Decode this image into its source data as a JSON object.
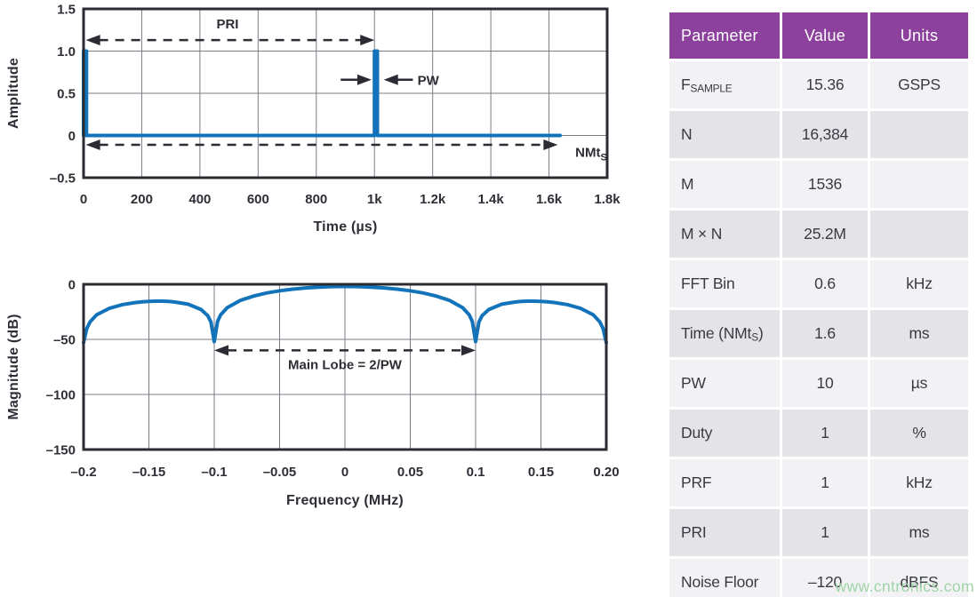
{
  "chart_data": [
    {
      "type": "line",
      "name": "time-domain-pulse-train",
      "xlabel": "Time (µs)",
      "ylabel": "Amplitude",
      "xlim": [
        0,
        1800
      ],
      "ylim": [
        -0.5,
        1.5
      ],
      "xticks": [
        "0",
        "200",
        "400",
        "600",
        "800",
        "1k",
        "1.2k",
        "1.4k",
        "1.6k",
        "1.8k"
      ],
      "xtick_values": [
        0,
        200,
        400,
        600,
        800,
        1000,
        1200,
        1400,
        1600,
        1800
      ],
      "yticks": [
        "1.5",
        "1.0",
        "0.5",
        "0",
        "–0.5"
      ],
      "ytick_values": [
        1.5,
        1.0,
        0.5,
        0,
        -0.5
      ],
      "grid": true,
      "series": [
        {
          "name": "pulse-train",
          "points": [
            [
              0,
              0
            ],
            [
              0,
              1
            ],
            [
              10,
              1
            ],
            [
              10,
              0
            ],
            [
              1000,
              0
            ],
            [
              1000,
              1
            ],
            [
              1010,
              1
            ],
            [
              1010,
              0
            ],
            [
              1638,
              0
            ]
          ]
        }
      ],
      "annotations": [
        {
          "kind": "dblarrow",
          "x1": 8,
          "x2": 1000,
          "y": 1.13,
          "label_parts": [
            {
              "t": "PRI"
            }
          ],
          "label_x": 495,
          "label_y": 1.32,
          "anchor": "middle"
        },
        {
          "kind": "arrow",
          "x1": 884,
          "x2": 990,
          "y": 0.66
        },
        {
          "kind": "arrow",
          "x1": 1132,
          "x2": 1032,
          "y": 0.66,
          "label_parts": [
            {
              "t": "PW"
            }
          ],
          "label_x": 1148,
          "label_y": 0.655,
          "anchor": "start"
        },
        {
          "kind": "dblarrow",
          "x1": 8,
          "x2": 1630,
          "y": -0.11,
          "label_parts": [
            {
              "t": "NMt"
            },
            {
              "t": "S",
              "sub": true
            }
          ],
          "label_x": 1745,
          "label_y": -0.2,
          "anchor": "middle"
        }
      ]
    },
    {
      "type": "line",
      "name": "frequency-domain-sinc-spectrum",
      "xlabel": "Frequency (MHz)",
      "ylabel": "Magnitude (dB)",
      "xlim": [
        -0.2,
        0.2
      ],
      "ylim": [
        -150,
        0
      ],
      "xticks": [
        "–0.2",
        "–0.15",
        "–0.1",
        "–0.05",
        "0",
        "0.05",
        "0.1",
        "0.15",
        "0.20"
      ],
      "xtick_values": [
        -0.2,
        -0.15,
        -0.1,
        -0.05,
        0,
        0.05,
        0.1,
        0.15,
        0.2
      ],
      "yticks": [
        "0",
        "–50",
        "–100",
        "–150"
      ],
      "ytick_values": [
        0,
        -50,
        -100,
        -150
      ],
      "grid": true,
      "series": [
        {
          "name": "sinc-spectrum",
          "points": [
            [
              -0.2,
              -53
            ],
            [
              -0.1975,
              -40
            ],
            [
              -0.195,
              -34
            ],
            [
              -0.19,
              -27.7
            ],
            [
              -0.18,
              -21.7
            ],
            [
              -0.17,
              -18.4
            ],
            [
              -0.16,
              -16.5
            ],
            [
              -0.155,
              -15.9
            ],
            [
              -0.15,
              -15.5
            ],
            [
              -0.145,
              -15.3
            ],
            [
              -0.14,
              -15.3
            ],
            [
              -0.135,
              -15.6
            ],
            [
              -0.13,
              -16.1
            ],
            [
              -0.12,
              -18.1
            ],
            [
              -0.11,
              -23.0
            ],
            [
              -0.105,
              -28.5
            ],
            [
              -0.1025,
              -34.3
            ],
            [
              -0.1,
              -52
            ],
            [
              -0.0975,
              -33.8
            ],
            [
              -0.095,
              -27.6
            ],
            [
              -0.09,
              -21.2
            ],
            [
              -0.08,
              -14.6
            ],
            [
              -0.07,
              -10.7
            ],
            [
              -0.06,
              -7.9
            ],
            [
              -0.05,
              -5.9
            ],
            [
              -0.04,
              -4.4
            ],
            [
              -0.03,
              -3.3
            ],
            [
              -0.02,
              -2.6
            ],
            [
              -0.01,
              -2.1
            ],
            [
              0,
              -2
            ],
            [
              0.01,
              -2.1
            ],
            [
              0.02,
              -2.6
            ],
            [
              0.03,
              -3.3
            ],
            [
              0.04,
              -4.4
            ],
            [
              0.05,
              -5.9
            ],
            [
              0.06,
              -7.9
            ],
            [
              0.07,
              -10.7
            ],
            [
              0.08,
              -14.6
            ],
            [
              0.09,
              -21.2
            ],
            [
              0.095,
              -27.6
            ],
            [
              0.0975,
              -33.8
            ],
            [
              0.1,
              -52
            ],
            [
              0.1025,
              -34.3
            ],
            [
              0.105,
              -28.5
            ],
            [
              0.11,
              -23.0
            ],
            [
              0.12,
              -18.1
            ],
            [
              0.13,
              -16.1
            ],
            [
              0.135,
              -15.6
            ],
            [
              0.14,
              -15.3
            ],
            [
              0.145,
              -15.3
            ],
            [
              0.15,
              -15.5
            ],
            [
              0.155,
              -15.9
            ],
            [
              0.16,
              -16.5
            ],
            [
              0.17,
              -18.4
            ],
            [
              0.18,
              -21.7
            ],
            [
              0.19,
              -27.7
            ],
            [
              0.195,
              -34
            ],
            [
              0.1975,
              -40
            ],
            [
              0.2,
              -53
            ]
          ]
        }
      ],
      "annotations": [
        {
          "kind": "dblarrow",
          "x1": -0.1,
          "x2": 0.1,
          "y": -60,
          "label_parts": [
            {
              "t": "Main Lobe = 2/PW"
            }
          ],
          "label_x": 0,
          "label_y": -73,
          "anchor": "middle"
        }
      ]
    }
  ],
  "table": {
    "columns": [
      "Parameter",
      "Value",
      "Units"
    ],
    "rows": [
      {
        "param": [
          {
            "t": "F"
          },
          {
            "t": "SAMPLE",
            "sub": true
          }
        ],
        "value": "15.36",
        "units": "GSPS"
      },
      {
        "param": [
          {
            "t": "N"
          }
        ],
        "value": "16,384",
        "units": ""
      },
      {
        "param": [
          {
            "t": "M"
          }
        ],
        "value": "1536",
        "units": ""
      },
      {
        "param": [
          {
            "t": "M × N"
          }
        ],
        "value": "25.2M",
        "units": ""
      },
      {
        "param": [
          {
            "t": "FFT Bin"
          }
        ],
        "value": "0.6",
        "units": "kHz"
      },
      {
        "param": [
          {
            "t": "Time (NMt"
          },
          {
            "t": "S",
            "sub": true
          },
          {
            "t": ")"
          }
        ],
        "value": "1.6",
        "units": "ms"
      },
      {
        "param": [
          {
            "t": "PW"
          }
        ],
        "value": "10",
        "units": "µs"
      },
      {
        "param": [
          {
            "t": "Duty"
          }
        ],
        "value": "1",
        "units": "%"
      },
      {
        "param": [
          {
            "t": "PRF"
          }
        ],
        "value": "1",
        "units": "kHz"
      },
      {
        "param": [
          {
            "t": "PRI"
          }
        ],
        "value": "1",
        "units": "ms"
      },
      {
        "param": [
          {
            "t": "Noise Floor"
          }
        ],
        "value": "–120",
        "units": "dBFS"
      }
    ]
  },
  "watermark": "www.cntronics.com",
  "colors": {
    "curve_blue": "#1373ba",
    "grid_gray": "#7c7c84",
    "ink": "#2b2c33",
    "header_purple": "#8c429c",
    "row_light": "#f2f2f5",
    "row_dark": "#e3e3e8",
    "watermark_green": "#9cd2a4"
  }
}
